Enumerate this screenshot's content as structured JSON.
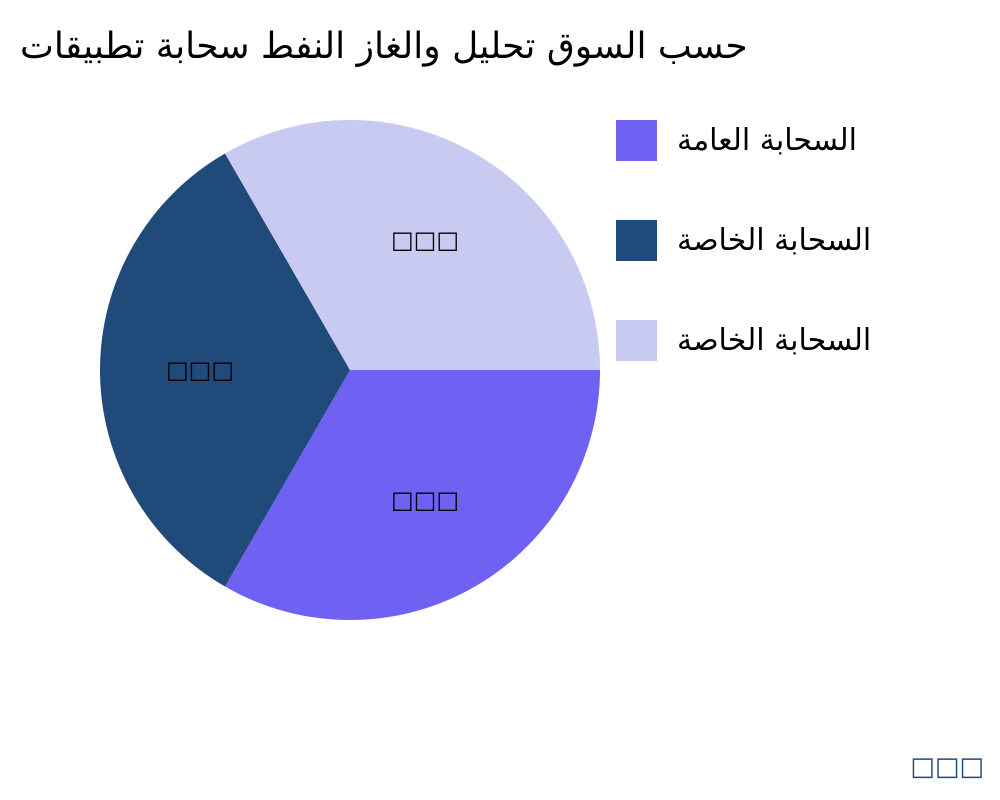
{
  "chart_data": {
    "type": "pie",
    "title": "حسب السوق تحليل والغاز النفط سحابة تطبيقات",
    "slices": [
      {
        "name": "السحابة العامة",
        "value": 33.33,
        "color": "#6f61f2",
        "label": "□□□"
      },
      {
        "name": "السحابة الخاصة",
        "value": 33.33,
        "color": "#1f4a7a",
        "label": "□□□"
      },
      {
        "name": "السحابة الخاصة",
        "value": 33.33,
        "color": "#c9caf1",
        "label": "□□□"
      }
    ],
    "start_angle_deg": 0,
    "direction": "clockwise",
    "legend_position": "right"
  },
  "watermark": "□□□"
}
